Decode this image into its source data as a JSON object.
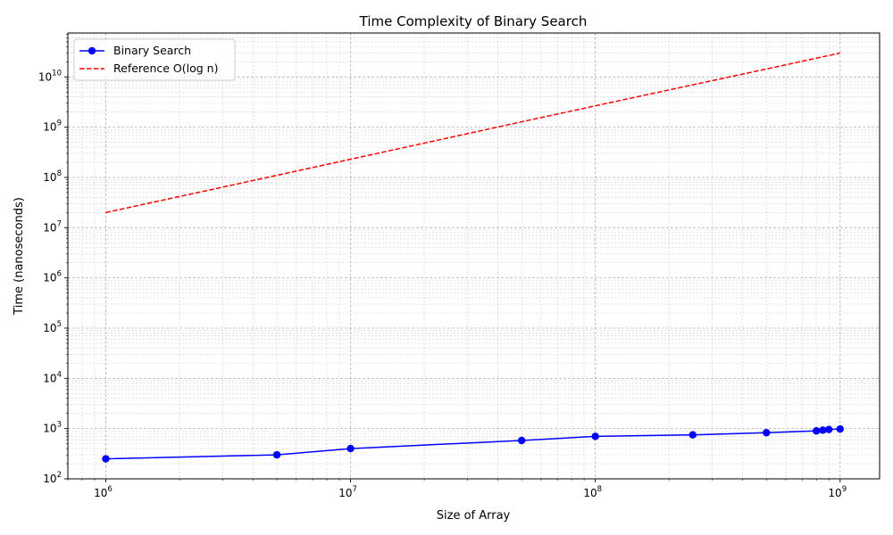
{
  "chart_data": {
    "type": "line",
    "title": "Time Complexity of Binary Search",
    "xlabel": "Size of Array",
    "ylabel": "Time (nanoseconds)",
    "x_scale": "log",
    "y_scale": "log",
    "xlim": [
      700000,
      1450000000
    ],
    "ylim": [
      100,
      75000000000
    ],
    "x_ticks": [
      {
        "value": 1000000,
        "base": "10",
        "exp": "6"
      },
      {
        "value": 10000000,
        "base": "10",
        "exp": "7"
      },
      {
        "value": 100000000,
        "base": "10",
        "exp": "8"
      },
      {
        "value": 1000000000,
        "base": "10",
        "exp": "9"
      }
    ],
    "y_ticks": [
      {
        "value": 100,
        "base": "10",
        "exp": "2"
      },
      {
        "value": 1000,
        "base": "10",
        "exp": "3"
      },
      {
        "value": 10000,
        "base": "10",
        "exp": "4"
      },
      {
        "value": 100000,
        "base": "10",
        "exp": "5"
      },
      {
        "value": 1000000,
        "base": "10",
        "exp": "6"
      },
      {
        "value": 10000000,
        "base": "10",
        "exp": "7"
      },
      {
        "value": 100000000,
        "base": "10",
        "exp": "8"
      },
      {
        "value": 1000000000,
        "base": "10",
        "exp": "9"
      },
      {
        "value": 10000000000,
        "base": "10",
        "exp": "10"
      }
    ],
    "grid": true,
    "grid_minor": true,
    "legend_position": "top-left",
    "series": [
      {
        "name": "Binary Search",
        "color": "#0000ff",
        "style": "solid",
        "marker": "circle",
        "x": [
          1000000,
          5000000,
          10000000,
          50000000,
          100000000,
          250000000,
          500000000,
          800000000,
          850000000,
          900000000,
          1000000000
        ],
        "y": [
          250,
          300,
          400,
          580,
          700,
          750,
          830,
          900,
          930,
          960,
          980
        ]
      },
      {
        "name": "Reference O(log n)",
        "color": "#ff0000",
        "style": "dashed",
        "marker": "none",
        "x": [
          1000000,
          5000000,
          10000000,
          50000000,
          100000000,
          250000000,
          500000000,
          800000000,
          1000000000
        ],
        "y": [
          20000000,
          110000000,
          230000000,
          1280000000,
          2660000000,
          6970000000,
          14400000000,
          23600000000,
          29900000000
        ]
      }
    ]
  }
}
